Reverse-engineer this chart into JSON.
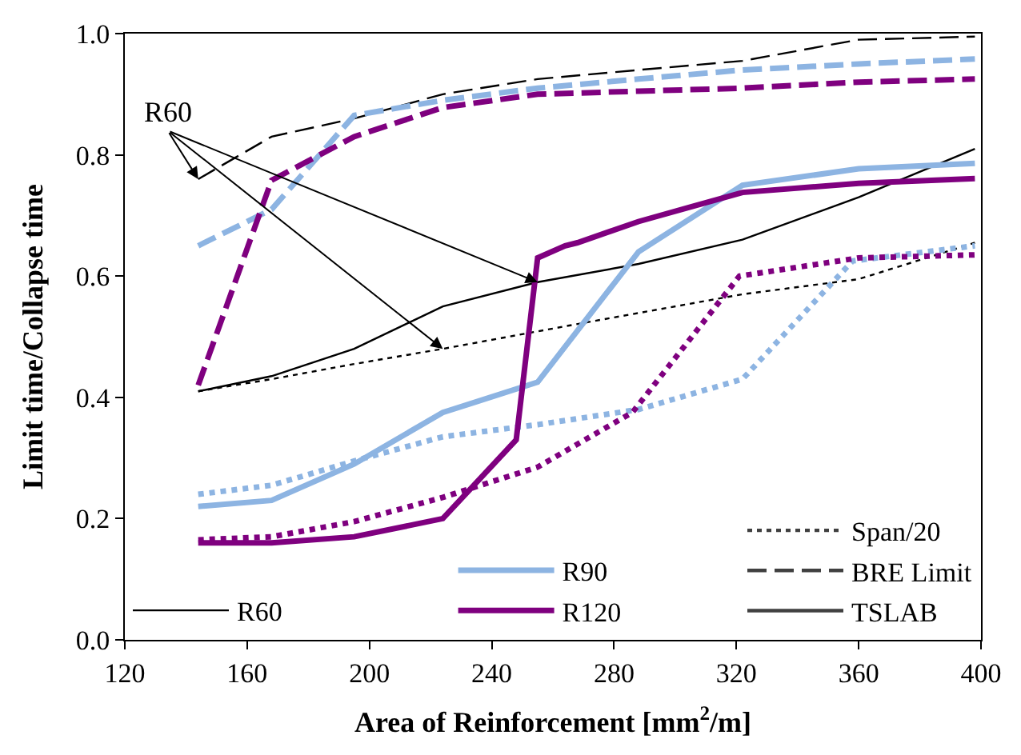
{
  "chart_data": {
    "type": "line",
    "xlabel": "Area of Reinforcement [mm$^{2}$/m]",
    "ylabel": "Limit time/Collapse time",
    "xlim": [
      120,
      400
    ],
    "xticks": [
      120,
      160,
      200,
      240,
      280,
      320,
      360,
      400
    ],
    "ylim": [
      0,
      1
    ],
    "yticks": [
      {
        "value": 0,
        "label": "0.0"
      },
      {
        "value": 0.2,
        "label": "0.2"
      },
      {
        "value": 0.4,
        "label": "0.4"
      },
      {
        "value": 0.6,
        "label": "0.6"
      },
      {
        "value": 0.8,
        "label": "0.8"
      },
      {
        "value": 1,
        "label": "1.0"
      }
    ],
    "legend": "bottom",
    "marker": "none",
    "annotations": [
      {
        "text": "R60",
        "x": 144,
        "y": 0.76
      }
    ],
    "series": [
      {
        "name": "R60",
        "color": "#000000",
        "line_style": "solid",
        "x": [
          144,
          168,
          195,
          224,
          255,
          288,
          322,
          360,
          398
        ],
        "values": [
          0.41,
          0.435,
          0.48,
          0.55,
          0.59,
          0.62,
          0.66,
          0.73,
          0.81
        ]
      },
      {
        "color": "#000000",
        "line_style": "dashed",
        "x": [
          144,
          168,
          195,
          224,
          255,
          288,
          322,
          360,
          398
        ],
        "values": [
          0.76,
          0.83,
          0.86,
          0.9,
          0.925,
          0.94,
          0.955,
          0.99,
          0.995
        ]
      },
      {
        "color": "#000000",
        "line_style": "dotted",
        "x": [
          144,
          168,
          195,
          224,
          267,
          322,
          360,
          398
        ],
        "values": [
          0.41,
          0.43,
          0.455,
          0.48,
          0.52,
          0.57,
          0.595,
          0.655
        ]
      },
      {
        "name": "R90",
        "color": "#8db4e2",
        "line_style": "solid",
        "x": [
          144,
          168,
          195,
          224,
          255,
          288,
          322,
          360,
          398
        ],
        "values": [
          0.22,
          0.23,
          0.29,
          0.375,
          0.425,
          0.64,
          0.75,
          0.777,
          0.786
        ]
      },
      {
        "color": "#8db4e2",
        "line_style": "dashed",
        "x": [
          144,
          168,
          195,
          224,
          255,
          288,
          322,
          360,
          398
        ],
        "values": [
          0.65,
          0.71,
          0.865,
          0.89,
          0.91,
          0.925,
          0.94,
          0.95,
          0.958
        ]
      },
      {
        "color": "#8db4e2",
        "line_style": "dotted",
        "x": [
          144,
          168,
          195,
          224,
          255,
          288,
          322,
          358,
          398
        ],
        "values": [
          0.24,
          0.255,
          0.295,
          0.335,
          0.355,
          0.38,
          0.43,
          0.625,
          0.65
        ]
      },
      {
        "name": "R120",
        "color": "#7f007f",
        "line_style": "solid",
        "x": [
          144,
          168,
          195,
          224,
          248,
          255,
          264,
          268,
          288,
          322,
          360,
          398
        ],
        "values": [
          0.16,
          0.16,
          0.17,
          0.2,
          0.33,
          0.63,
          0.65,
          0.655,
          0.69,
          0.738,
          0.753,
          0.761
        ]
      },
      {
        "color": "#7f007f",
        "line_style": "dashed",
        "x": [
          144,
          168,
          195,
          224,
          255,
          288,
          322,
          360,
          398
        ],
        "values": [
          0.42,
          0.758,
          0.83,
          0.878,
          0.9,
          0.905,
          0.91,
          0.92,
          0.925
        ]
      },
      {
        "color": "#7f007f",
        "line_style": "dotted",
        "x": [
          144,
          168,
          195,
          224,
          255,
          286,
          321,
          360,
          398
        ],
        "values": [
          0.165,
          0.17,
          0.195,
          0.235,
          0.285,
          0.375,
          0.6,
          0.63,
          0.635
        ]
      },
      {
        "name": "Span/20",
        "color": "#404040",
        "line_style": "dotted",
        "values": [
          null
        ]
      },
      {
        "name": "BRE Limit",
        "color": "#404040",
        "line_style": "dashed",
        "values": [
          null
        ]
      },
      {
        "name": "TSLAB",
        "color": "#404040",
        "line_style": "solid",
        "values": [
          null
        ]
      }
    ]
  }
}
